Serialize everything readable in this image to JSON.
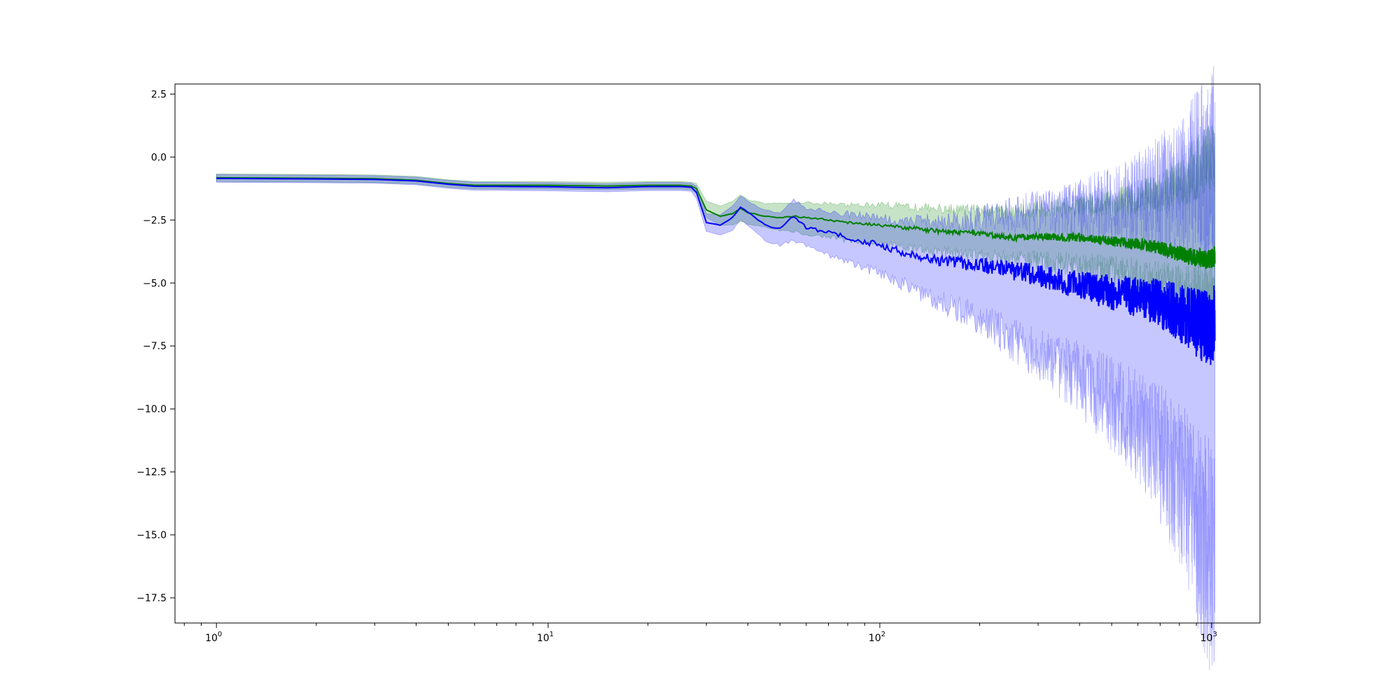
{
  "chart_data": {
    "type": "line",
    "title": "",
    "xlabel": "",
    "ylabel": "",
    "x_scale": "log",
    "xlim": [
      0.75,
      1400
    ],
    "ylim": [
      -18.5,
      2.9
    ],
    "grid": false,
    "legend": "none",
    "x_ticks": [
      {
        "value": 1,
        "base": "10",
        "exp": "0"
      },
      {
        "value": 10,
        "base": "10",
        "exp": "1"
      },
      {
        "value": 100,
        "base": "10",
        "exp": "2"
      },
      {
        "value": 1000,
        "base": "10",
        "exp": "3"
      }
    ],
    "y_ticks": [
      {
        "value": 2.5,
        "label": "2.5"
      },
      {
        "value": 0,
        "label": "0.0"
      },
      {
        "value": -2.5,
        "label": "−2.5"
      },
      {
        "value": -5,
        "label": "−5.0"
      },
      {
        "value": -7.5,
        "label": "−7.5"
      },
      {
        "value": -10,
        "label": "−10.0"
      },
      {
        "value": -12.5,
        "label": "−12.5"
      },
      {
        "value": -15,
        "label": "−15.0"
      },
      {
        "value": -17.5,
        "label": "−17.5"
      }
    ],
    "series": [
      {
        "color": "#008000",
        "band_color": "#008000",
        "band_opacity": 0.22,
        "x": [
          1,
          2,
          3,
          4,
          5,
          6,
          8,
          10,
          15,
          20,
          25,
          27,
          28,
          30,
          33,
          36,
          38,
          40,
          45,
          50,
          55,
          60,
          70,
          80,
          100,
          120,
          150,
          200,
          250,
          300,
          400,
          500,
          600,
          700,
          800,
          900,
          1000,
          1024
        ],
        "mean": [
          -0.82,
          -0.84,
          -0.86,
          -0.92,
          -1.05,
          -1.12,
          -1.12,
          -1.12,
          -1.15,
          -1.12,
          -1.12,
          -1.15,
          -1.25,
          -2.1,
          -2.35,
          -2.25,
          -2.05,
          -2.2,
          -2.35,
          -2.4,
          -2.35,
          -2.4,
          -2.5,
          -2.6,
          -2.7,
          -2.8,
          -2.95,
          -3.05,
          -3.2,
          -3.15,
          -3.2,
          -3.35,
          -3.45,
          -3.6,
          -3.85,
          -4.0,
          -4.05,
          -3.9
        ],
        "lower": [
          -0.97,
          -0.99,
          -1.01,
          -1.07,
          -1.2,
          -1.27,
          -1.27,
          -1.27,
          -1.3,
          -1.27,
          -1.27,
          -1.3,
          -1.45,
          -2.4,
          -2.7,
          -2.7,
          -2.55,
          -2.65,
          -2.8,
          -2.9,
          -2.95,
          -3.05,
          -3.2,
          -3.3,
          -3.45,
          -3.6,
          -3.75,
          -3.9,
          -4.05,
          -4.1,
          -4.3,
          -4.55,
          -4.8,
          -5.1,
          -5.5,
          -5.8,
          -6.0,
          -6.1
        ],
        "upper": [
          -0.67,
          -0.69,
          -0.71,
          -0.77,
          -0.9,
          -0.97,
          -0.97,
          -0.97,
          -1.0,
          -0.97,
          -0.97,
          -1.0,
          -1.05,
          -1.75,
          -1.95,
          -1.75,
          -1.5,
          -1.7,
          -1.85,
          -1.85,
          -1.8,
          -1.8,
          -1.85,
          -1.9,
          -1.9,
          -1.95,
          -2.05,
          -2.1,
          -2.2,
          -2.05,
          -1.9,
          -1.85,
          -1.6,
          -1.4,
          -1.0,
          -0.4,
          0.1,
          0.2
        ]
      },
      {
        "color": "#0000ff",
        "band_color": "#0000ff",
        "band_opacity": 0.22,
        "x": [
          1,
          2,
          3,
          4,
          5,
          6,
          8,
          10,
          15,
          20,
          25,
          27,
          28,
          30,
          33,
          36,
          38,
          40,
          45,
          50,
          55,
          60,
          70,
          80,
          100,
          120,
          150,
          200,
          250,
          300,
          400,
          500,
          600,
          700,
          800,
          900,
          1000,
          1024
        ],
        "mean": [
          -0.85,
          -0.87,
          -0.89,
          -0.95,
          -1.08,
          -1.16,
          -1.17,
          -1.18,
          -1.22,
          -1.17,
          -1.17,
          -1.2,
          -1.4,
          -2.6,
          -2.7,
          -2.4,
          -2.0,
          -2.2,
          -2.7,
          -2.85,
          -2.35,
          -2.8,
          -3.0,
          -3.2,
          -3.5,
          -3.8,
          -4.1,
          -4.3,
          -4.5,
          -4.7,
          -5.1,
          -5.4,
          -5.6,
          -5.8,
          -6.2,
          -6.6,
          -6.9,
          -6.5
        ],
        "lower": [
          -1.0,
          -1.02,
          -1.04,
          -1.1,
          -1.24,
          -1.32,
          -1.33,
          -1.34,
          -1.38,
          -1.33,
          -1.33,
          -1.36,
          -1.65,
          -2.95,
          -3.1,
          -2.9,
          -2.5,
          -2.7,
          -3.3,
          -3.5,
          -3.3,
          -3.5,
          -3.9,
          -4.2,
          -4.6,
          -5.1,
          -5.7,
          -6.4,
          -7.2,
          -7.8,
          -8.8,
          -9.8,
          -10.6,
          -11.8,
          -13.0,
          -14.5,
          -16.0,
          -15.5
        ],
        "upper": [
          -0.7,
          -0.72,
          -0.74,
          -0.8,
          -0.93,
          -1.0,
          -1.01,
          -1.02,
          -1.06,
          -1.01,
          -1.01,
          -1.04,
          -1.15,
          -2.25,
          -2.3,
          -1.95,
          -1.55,
          -1.75,
          -2.1,
          -2.2,
          -1.7,
          -2.05,
          -2.15,
          -2.25,
          -2.4,
          -2.5,
          -2.6,
          -2.4,
          -2.3,
          -2.2,
          -2.1,
          -1.9,
          -1.7,
          -1.4,
          -1.2,
          -0.7,
          -0.2,
          0.0
        ]
      }
    ]
  }
}
